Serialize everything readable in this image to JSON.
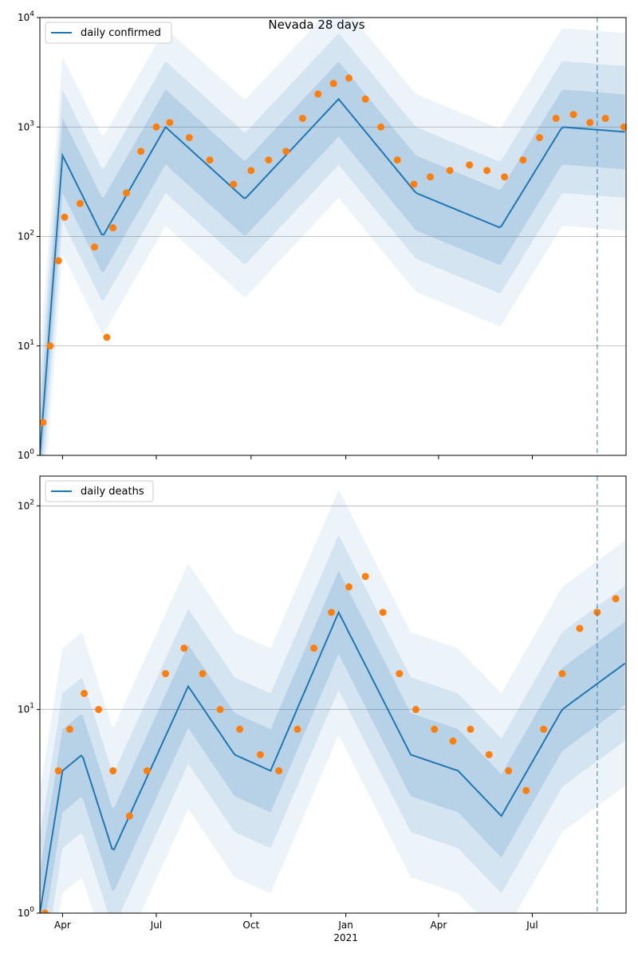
{
  "figure": {
    "suptitle": "Nevada 28 days",
    "xaxis": {
      "tick_labels": [
        "Apr",
        "Jul",
        "Oct",
        "Jan",
        "Apr",
        "Jul"
      ],
      "tick_dates": [
        "2020-04-01",
        "2020-07-01",
        "2020-10-01",
        "2021-01-01",
        "2021-04-01",
        "2021-07-01"
      ],
      "year_label": "2021",
      "range": [
        "2020-03-10",
        "2021-09-30"
      ]
    },
    "vline_date": "2021-09-02"
  },
  "chart_data": [
    {
      "type": "scatter",
      "legend": "daily confirmed",
      "legend_position": "upper left",
      "yscale": "log",
      "ylim": [
        1,
        10000
      ],
      "ytick_labels": [
        "10^0",
        "10^1",
        "10^2",
        "10^3",
        "10^4"
      ],
      "grid": "y-major",
      "colors": {
        "line": "#1f77b4",
        "points": "#ff7f0e",
        "band": "#1f77b4"
      },
      "x": [
        "2020-03-10",
        "2020-04-01",
        "2020-05-10",
        "2020-07-10",
        "2020-09-25",
        "2020-12-25",
        "2021-03-10",
        "2021-05-31",
        "2021-07-30",
        "2021-09-30"
      ],
      "series": [
        {
          "name": "daily confirmed",
          "kind": "line",
          "values": [
            1,
            550,
            100,
            1000,
            220,
            1800,
            250,
            120,
            1000,
            900
          ]
        }
      ],
      "observations": {
        "x": [
          "2020-03-13",
          "2020-03-20",
          "2020-03-28",
          "2020-04-03",
          "2020-04-18",
          "2020-05-02",
          "2020-05-14",
          "2020-05-20",
          "2020-06-02",
          "2020-06-16",
          "2020-07-01",
          "2020-07-14",
          "2020-08-02",
          "2020-08-22",
          "2020-09-14",
          "2020-10-01",
          "2020-10-18",
          "2020-11-04",
          "2020-11-20",
          "2020-12-05",
          "2020-12-20",
          "2021-01-04",
          "2021-01-20",
          "2021-02-04",
          "2021-02-20",
          "2021-03-08",
          "2021-03-24",
          "2021-04-12",
          "2021-05-01",
          "2021-05-18",
          "2021-06-04",
          "2021-06-22",
          "2021-07-08",
          "2021-07-24",
          "2021-08-10",
          "2021-08-26",
          "2021-09-10",
          "2021-09-28"
        ],
        "values": [
          2,
          10,
          60,
          150,
          200,
          80,
          12,
          120,
          250,
          600,
          1000,
          1100,
          800,
          500,
          300,
          400,
          500,
          600,
          1200,
          2000,
          2500,
          2800,
          1800,
          1000,
          500,
          300,
          350,
          400,
          450,
          400,
          350,
          500,
          800,
          1200,
          1300,
          1100,
          1200,
          1000
        ]
      }
    },
    {
      "type": "scatter",
      "legend": "daily deaths",
      "legend_position": "upper left",
      "yscale": "log",
      "ylim": [
        1,
        140
      ],
      "ytick_labels": [
        "10^1",
        "10^2"
      ],
      "grid": "y-major",
      "colors": {
        "line": "#1f77b4",
        "points": "#ff7f0e",
        "band": "#1f77b4"
      },
      "x": [
        "2020-03-10",
        "2020-04-01",
        "2020-04-20",
        "2020-05-20",
        "2020-08-01",
        "2020-09-15",
        "2020-10-20",
        "2020-12-25",
        "2021-03-05",
        "2021-04-20",
        "2021-06-01",
        "2021-07-30",
        "2021-09-30"
      ],
      "series": [
        {
          "name": "daily deaths",
          "kind": "line",
          "values": [
            1,
            5,
            6,
            2,
            13,
            6,
            5,
            30,
            6,
            5,
            3,
            10,
            17
          ]
        }
      ],
      "observations": {
        "x": [
          "2020-03-15",
          "2020-03-28",
          "2020-04-08",
          "2020-04-22",
          "2020-05-06",
          "2020-05-20",
          "2020-06-05",
          "2020-06-22",
          "2020-07-10",
          "2020-07-28",
          "2020-08-15",
          "2020-09-01",
          "2020-09-20",
          "2020-10-10",
          "2020-10-28",
          "2020-11-15",
          "2020-12-01",
          "2020-12-18",
          "2021-01-04",
          "2021-01-20",
          "2021-02-06",
          "2021-02-22",
          "2021-03-10",
          "2021-03-28",
          "2021-04-15",
          "2021-05-02",
          "2021-05-20",
          "2021-06-08",
          "2021-06-25",
          "2021-07-12",
          "2021-07-30",
          "2021-08-16",
          "2021-09-02",
          "2021-09-20"
        ],
        "values": [
          1,
          5,
          8,
          12,
          10,
          5,
          3,
          5,
          15,
          20,
          15,
          10,
          8,
          6,
          5,
          8,
          20,
          30,
          40,
          45,
          30,
          15,
          10,
          8,
          7,
          8,
          6,
          5,
          4,
          8,
          15,
          25,
          30,
          35
        ]
      }
    }
  ]
}
